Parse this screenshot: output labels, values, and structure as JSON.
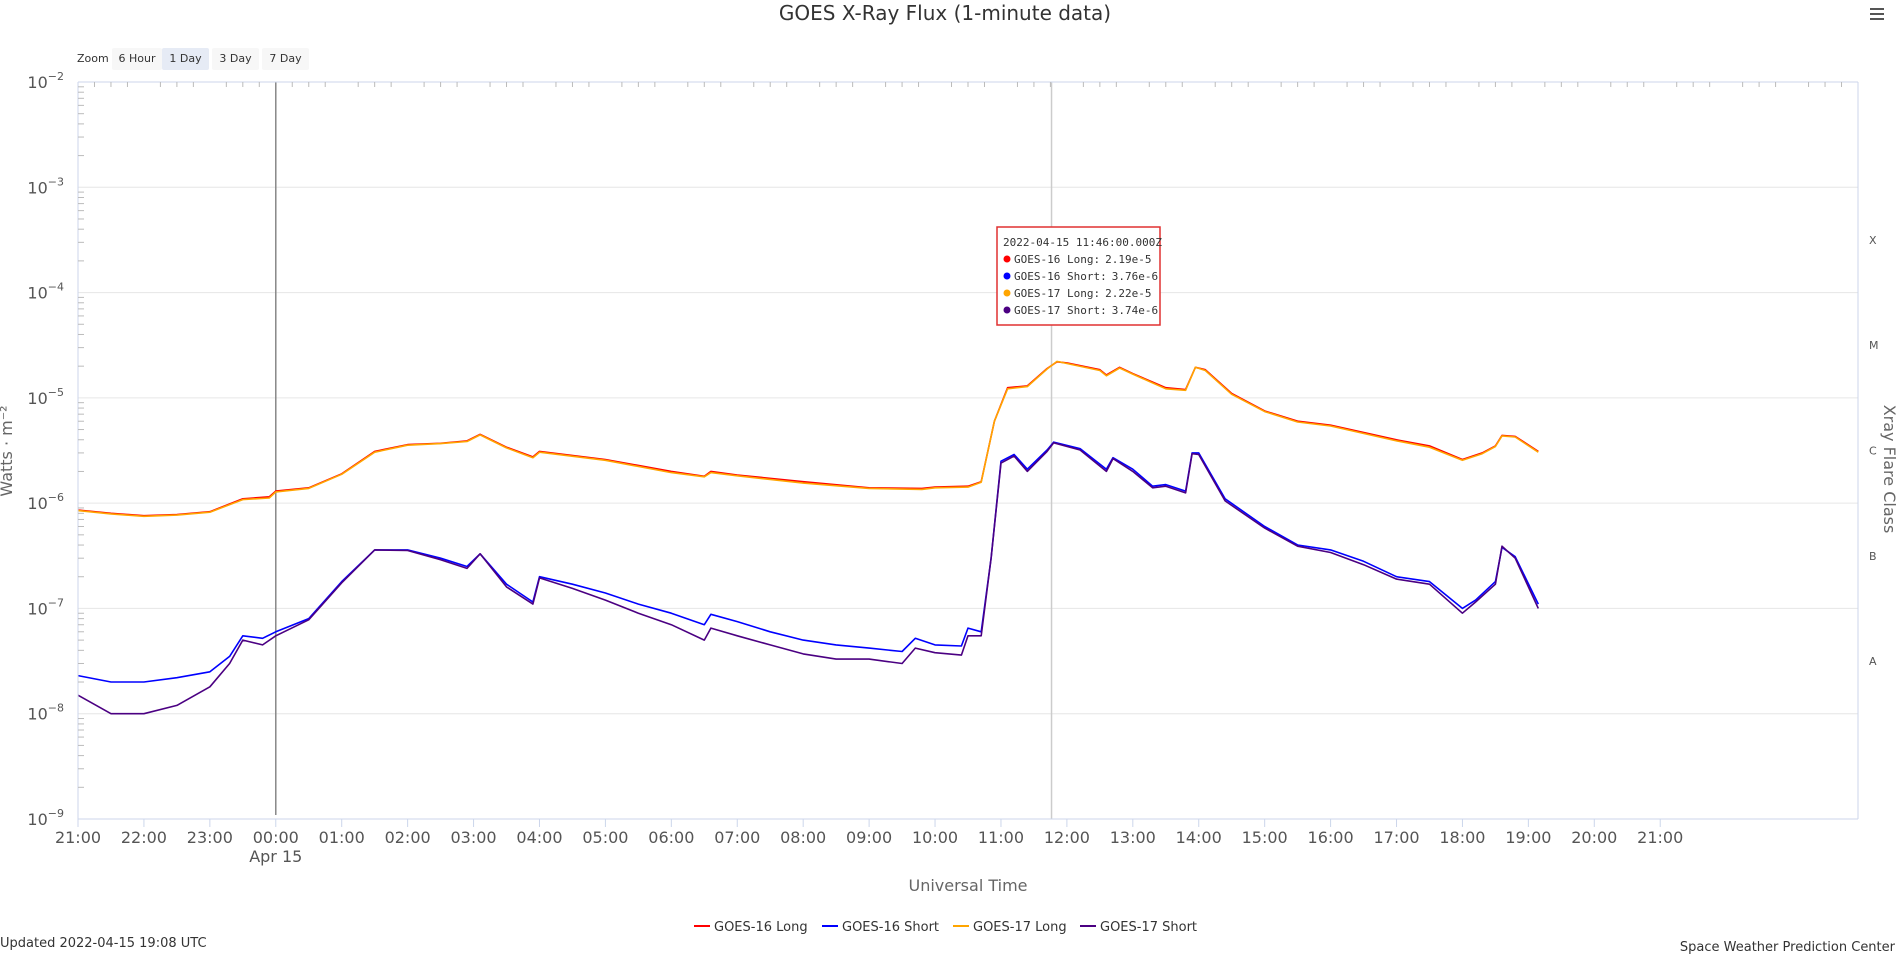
{
  "chart_data": {
    "type": "line",
    "title": "GOES X-Ray Flux (1-minute data)",
    "xlabel": "Universal Time",
    "ylabel": "Watts · m⁻²",
    "y2label": "Xray Flare Class",
    "yscale": "log",
    "ylim": [
      1e-09,
      0.01
    ],
    "xlim_hours": [
      -3,
      24
    ],
    "y_ticks": [
      {
        "base": "10",
        "exp": "−9",
        "value": 1e-09
      },
      {
        "base": "10",
        "exp": "−8",
        "value": 1e-08
      },
      {
        "base": "10",
        "exp": "−7",
        "value": 1e-07
      },
      {
        "base": "10",
        "exp": "−6",
        "value": 1e-06
      },
      {
        "base": "10",
        "exp": "−5",
        "value": 1e-05
      },
      {
        "base": "10",
        "exp": "−4",
        "value": 0.0001
      },
      {
        "base": "10",
        "exp": "−3",
        "value": 0.001
      },
      {
        "base": "10",
        "exp": "−2",
        "value": 0.01
      }
    ],
    "x_ticks": [
      {
        "label": "21:00",
        "h": -3
      },
      {
        "label": "22:00",
        "h": -2
      },
      {
        "label": "23:00",
        "h": -1
      },
      {
        "label": "00:00",
        "h": 0,
        "sub": "Apr 15"
      },
      {
        "label": "01:00",
        "h": 1
      },
      {
        "label": "02:00",
        "h": 2
      },
      {
        "label": "03:00",
        "h": 3
      },
      {
        "label": "04:00",
        "h": 4
      },
      {
        "label": "05:00",
        "h": 5
      },
      {
        "label": "06:00",
        "h": 6
      },
      {
        "label": "07:00",
        "h": 7
      },
      {
        "label": "08:00",
        "h": 8
      },
      {
        "label": "09:00",
        "h": 9
      },
      {
        "label": "10:00",
        "h": 10
      },
      {
        "label": "11:00",
        "h": 11
      },
      {
        "label": "12:00",
        "h": 12
      },
      {
        "label": "13:00",
        "h": 13
      },
      {
        "label": "14:00",
        "h": 14
      },
      {
        "label": "15:00",
        "h": 15
      },
      {
        "label": "16:00",
        "h": 16
      },
      {
        "label": "17:00",
        "h": 17
      },
      {
        "label": "18:00",
        "h": 18
      },
      {
        "label": "19:00",
        "h": 19
      },
      {
        "label": "20:00",
        "h": 20
      },
      {
        "label": "21:00",
        "h": 21
      }
    ],
    "flare_classes": [
      {
        "label": "A",
        "value": 3.16e-08
      },
      {
        "label": "B",
        "value": 3.16e-07
      },
      {
        "label": "C",
        "value": 3.16e-06
      },
      {
        "label": "M",
        "value": 3.16e-05
      },
      {
        "label": "X",
        "value": 0.000316
      }
    ],
    "plot_lines_hours": [
      0,
      11.767
    ],
    "series": [
      {
        "name": "GOES-16 Long",
        "color": "#ff0000",
        "points": [
          [
            -3,
            8.6e-07
          ],
          [
            -2.5,
            8e-07
          ],
          [
            -2,
            7.6e-07
          ],
          [
            -1.5,
            7.8e-07
          ],
          [
            -1,
            8.3e-07
          ],
          [
            -0.5,
            1.1e-06
          ],
          [
            -0.1,
            1.15e-06
          ],
          [
            0,
            1.3e-06
          ],
          [
            0.5,
            1.4e-06
          ],
          [
            1,
            1.9e-06
          ],
          [
            1.5,
            3.1e-06
          ],
          [
            2,
            3.6e-06
          ],
          [
            2.5,
            3.7e-06
          ],
          [
            2.9,
            3.9e-06
          ],
          [
            3.1,
            4.5e-06
          ],
          [
            3.5,
            3.4e-06
          ],
          [
            3.9,
            2.75e-06
          ],
          [
            4,
            3.1e-06
          ],
          [
            5,
            2.6e-06
          ],
          [
            6,
            2e-06
          ],
          [
            6.5,
            1.8e-06
          ],
          [
            6.6,
            2e-06
          ],
          [
            7,
            1.85e-06
          ],
          [
            8,
            1.6e-06
          ],
          [
            9,
            1.4e-06
          ],
          [
            9.8,
            1.38e-06
          ],
          [
            10,
            1.42e-06
          ],
          [
            10.5,
            1.45e-06
          ],
          [
            10.7,
            1.6e-06
          ],
          [
            10.9,
            6e-06
          ],
          [
            11.1,
            1.25e-05
          ],
          [
            11.4,
            1.3e-05
          ],
          [
            11.7,
            1.9e-05
          ],
          [
            11.85,
            2.2e-05
          ],
          [
            12,
            2.15e-05
          ],
          [
            12.5,
            1.85e-05
          ],
          [
            12.6,
            1.65e-05
          ],
          [
            12.8,
            1.95e-05
          ],
          [
            13,
            1.7e-05
          ],
          [
            13.5,
            1.25e-05
          ],
          [
            13.8,
            1.2e-05
          ],
          [
            13.95,
            1.95e-05
          ],
          [
            14.1,
            1.85e-05
          ],
          [
            14.5,
            1.1e-05
          ],
          [
            15,
            7.5e-06
          ],
          [
            15.5,
            6e-06
          ],
          [
            16,
            5.5e-06
          ],
          [
            17,
            4e-06
          ],
          [
            17.5,
            3.5e-06
          ],
          [
            18,
            2.6e-06
          ],
          [
            18.3,
            3e-06
          ],
          [
            18.5,
            3.5e-06
          ],
          [
            18.6,
            4.4e-06
          ],
          [
            18.8,
            4.3e-06
          ],
          [
            19.15,
            3.1e-06
          ]
        ]
      },
      {
        "name": "GOES-16 Short",
        "color": "#0000ff",
        "points": [
          [
            -3,
            2.3e-08
          ],
          [
            -2.5,
            2e-08
          ],
          [
            -2,
            2e-08
          ],
          [
            -1.5,
            2.2e-08
          ],
          [
            -1,
            2.5e-08
          ],
          [
            -0.7,
            3.5e-08
          ],
          [
            -0.5,
            5.5e-08
          ],
          [
            -0.2,
            5.2e-08
          ],
          [
            0,
            6e-08
          ],
          [
            0.5,
            8e-08
          ],
          [
            1,
            1.8e-07
          ],
          [
            1.5,
            3.6e-07
          ],
          [
            2,
            3.6e-07
          ],
          [
            2.5,
            3e-07
          ],
          [
            2.9,
            2.5e-07
          ],
          [
            3.1,
            3.3e-07
          ],
          [
            3.5,
            1.7e-07
          ],
          [
            3.9,
            1.15e-07
          ],
          [
            4,
            2e-07
          ],
          [
            4.5,
            1.7e-07
          ],
          [
            5,
            1.4e-07
          ],
          [
            5.5,
            1.1e-07
          ],
          [
            6,
            9e-08
          ],
          [
            6.5,
            7e-08
          ],
          [
            6.6,
            8.8e-08
          ],
          [
            7,
            7.5e-08
          ],
          [
            7.5,
            6e-08
          ],
          [
            8,
            5e-08
          ],
          [
            8.5,
            4.5e-08
          ],
          [
            9,
            4.2e-08
          ],
          [
            9.5,
            3.9e-08
          ],
          [
            9.7,
            5.2e-08
          ],
          [
            10,
            4.5e-08
          ],
          [
            10.4,
            4.4e-08
          ],
          [
            10.5,
            6.5e-08
          ],
          [
            10.7,
            6e-08
          ],
          [
            10.85,
            3e-07
          ],
          [
            11,
            2.5e-06
          ],
          [
            11.2,
            2.9e-06
          ],
          [
            11.4,
            2.1e-06
          ],
          [
            11.7,
            3.2e-06
          ],
          [
            11.8,
            3.8e-06
          ],
          [
            12.2,
            3.3e-06
          ],
          [
            12.6,
            2.1e-06
          ],
          [
            12.7,
            2.7e-06
          ],
          [
            13,
            2.1e-06
          ],
          [
            13.3,
            1.45e-06
          ],
          [
            13.5,
            1.5e-06
          ],
          [
            13.8,
            1.3e-06
          ],
          [
            13.9,
            3e-06
          ],
          [
            14,
            3e-06
          ],
          [
            14.4,
            1.1e-06
          ],
          [
            15,
            6e-07
          ],
          [
            15.5,
            4e-07
          ],
          [
            16,
            3.6e-07
          ],
          [
            16.5,
            2.8e-07
          ],
          [
            17,
            2e-07
          ],
          [
            17.5,
            1.8e-07
          ],
          [
            18,
            1e-07
          ],
          [
            18.2,
            1.2e-07
          ],
          [
            18.5,
            1.8e-07
          ],
          [
            18.6,
            3.8e-07
          ],
          [
            18.8,
            3.1e-07
          ],
          [
            19.15,
            1.1e-07
          ]
        ]
      },
      {
        "name": "GOES-17 Long",
        "color": "#ffa500",
        "points": [
          [
            -3,
            8.5e-07
          ],
          [
            -2.5,
            7.9e-07
          ],
          [
            -2,
            7.5e-07
          ],
          [
            -1.5,
            7.7e-07
          ],
          [
            -1,
            8.2e-07
          ],
          [
            -0.5,
            1.08e-06
          ],
          [
            -0.1,
            1.12e-06
          ],
          [
            0,
            1.28e-06
          ],
          [
            0.5,
            1.38e-06
          ],
          [
            1,
            1.88e-06
          ],
          [
            1.5,
            3.05e-06
          ],
          [
            2,
            3.55e-06
          ],
          [
            2.5,
            3.68e-06
          ],
          [
            2.9,
            3.85e-06
          ],
          [
            3.1,
            4.45e-06
          ],
          [
            3.5,
            3.35e-06
          ],
          [
            3.9,
            2.7e-06
          ],
          [
            4,
            3.05e-06
          ],
          [
            5,
            2.55e-06
          ],
          [
            6,
            1.95e-06
          ],
          [
            6.5,
            1.78e-06
          ],
          [
            6.6,
            1.95e-06
          ],
          [
            7,
            1.82e-06
          ],
          [
            8,
            1.55e-06
          ],
          [
            9,
            1.38e-06
          ],
          [
            9.8,
            1.35e-06
          ],
          [
            10,
            1.4e-06
          ],
          [
            10.5,
            1.42e-06
          ],
          [
            10.7,
            1.58e-06
          ],
          [
            10.9,
            6e-06
          ],
          [
            11.1,
            1.22e-05
          ],
          [
            11.4,
            1.28e-05
          ],
          [
            11.7,
            1.88e-05
          ],
          [
            11.85,
            2.22e-05
          ],
          [
            12,
            2.12e-05
          ],
          [
            12.5,
            1.82e-05
          ],
          [
            12.6,
            1.62e-05
          ],
          [
            12.8,
            1.92e-05
          ],
          [
            13,
            1.68e-05
          ],
          [
            13.5,
            1.22e-05
          ],
          [
            13.8,
            1.18e-05
          ],
          [
            13.95,
            1.95e-05
          ],
          [
            14.1,
            1.82e-05
          ],
          [
            14.5,
            1.08e-05
          ],
          [
            15,
            7.4e-06
          ],
          [
            15.5,
            5.9e-06
          ],
          [
            16,
            5.4e-06
          ],
          [
            17,
            3.9e-06
          ],
          [
            17.5,
            3.4e-06
          ],
          [
            18,
            2.55e-06
          ],
          [
            18.3,
            2.95e-06
          ],
          [
            18.5,
            3.45e-06
          ],
          [
            18.6,
            4.35e-06
          ],
          [
            18.8,
            4.25e-06
          ],
          [
            19.15,
            3.05e-06
          ]
        ]
      },
      {
        "name": "GOES-17 Short",
        "color": "#4b0082",
        "points": [
          [
            -3,
            1.5e-08
          ],
          [
            -2.5,
            1e-08
          ],
          [
            -2,
            1e-08
          ],
          [
            -1.5,
            1.2e-08
          ],
          [
            -1,
            1.8e-08
          ],
          [
            -0.7,
            3e-08
          ],
          [
            -0.5,
            5e-08
          ],
          [
            -0.2,
            4.5e-08
          ],
          [
            0,
            5.5e-08
          ],
          [
            0.5,
            7.8e-08
          ],
          [
            1,
            1.75e-07
          ],
          [
            1.5,
            3.6e-07
          ],
          [
            2,
            3.55e-07
          ],
          [
            2.5,
            2.9e-07
          ],
          [
            2.9,
            2.4e-07
          ],
          [
            3.1,
            3.3e-07
          ],
          [
            3.5,
            1.6e-07
          ],
          [
            3.9,
            1.1e-07
          ],
          [
            4,
            1.95e-07
          ],
          [
            4.5,
            1.55e-07
          ],
          [
            5,
            1.2e-07
          ],
          [
            5.5,
            9e-08
          ],
          [
            6,
            7e-08
          ],
          [
            6.5,
            5e-08
          ],
          [
            6.6,
            6.5e-08
          ],
          [
            7,
            5.5e-08
          ],
          [
            7.5,
            4.5e-08
          ],
          [
            8,
            3.7e-08
          ],
          [
            8.5,
            3.3e-08
          ],
          [
            9,
            3.3e-08
          ],
          [
            9.5,
            3e-08
          ],
          [
            9.7,
            4.2e-08
          ],
          [
            10,
            3.8e-08
          ],
          [
            10.4,
            3.6e-08
          ],
          [
            10.5,
            5.5e-08
          ],
          [
            10.7,
            5.5e-08
          ],
          [
            10.85,
            3e-07
          ],
          [
            11,
            2.4e-06
          ],
          [
            11.2,
            2.8e-06
          ],
          [
            11.4,
            2e-06
          ],
          [
            11.7,
            3.1e-06
          ],
          [
            11.8,
            3.74e-06
          ],
          [
            12.2,
            3.2e-06
          ],
          [
            12.6,
            2e-06
          ],
          [
            12.7,
            2.65e-06
          ],
          [
            13,
            2e-06
          ],
          [
            13.3,
            1.4e-06
          ],
          [
            13.5,
            1.45e-06
          ],
          [
            13.8,
            1.25e-06
          ],
          [
            13.9,
            2.95e-06
          ],
          [
            14,
            2.9e-06
          ],
          [
            14.4,
            1.05e-06
          ],
          [
            15,
            5.8e-07
          ],
          [
            15.5,
            3.9e-07
          ],
          [
            16,
            3.4e-07
          ],
          [
            16.5,
            2.6e-07
          ],
          [
            17,
            1.9e-07
          ],
          [
            17.5,
            1.7e-07
          ],
          [
            18,
            9e-08
          ],
          [
            18.2,
            1.15e-07
          ],
          [
            18.5,
            1.7e-07
          ],
          [
            18.6,
            3.9e-07
          ],
          [
            18.8,
            3e-07
          ],
          [
            19.15,
            1e-07
          ]
        ]
      }
    ],
    "tooltip": {
      "header": "2022-04-15 11:46:00.000Z",
      "rows": [
        {
          "label": "GOES-16 Long:",
          "value": "2.19e-5",
          "color": "#ff0000"
        },
        {
          "label": "GOES-16 Short:",
          "value": "3.76e-6",
          "color": "#0000ff"
        },
        {
          "label": "GOES-17 Long:",
          "value": "2.22e-5",
          "color": "#ffa500"
        },
        {
          "label": "GOES-17 Short:",
          "value": "3.74e-6",
          "color": "#4b0082"
        }
      ]
    }
  },
  "zoom": {
    "label": "Zoom",
    "buttons": [
      {
        "label": "6 Hour",
        "active": false
      },
      {
        "label": "1 Day",
        "active": true
      },
      {
        "label": "3 Day",
        "active": false
      },
      {
        "label": "7 Day",
        "active": false
      }
    ]
  },
  "footer": {
    "updated": "Updated 2022-04-15 19:08 UTC",
    "credit": "Space Weather Prediction Center"
  },
  "menu_icon": "hamburger-menu-icon"
}
